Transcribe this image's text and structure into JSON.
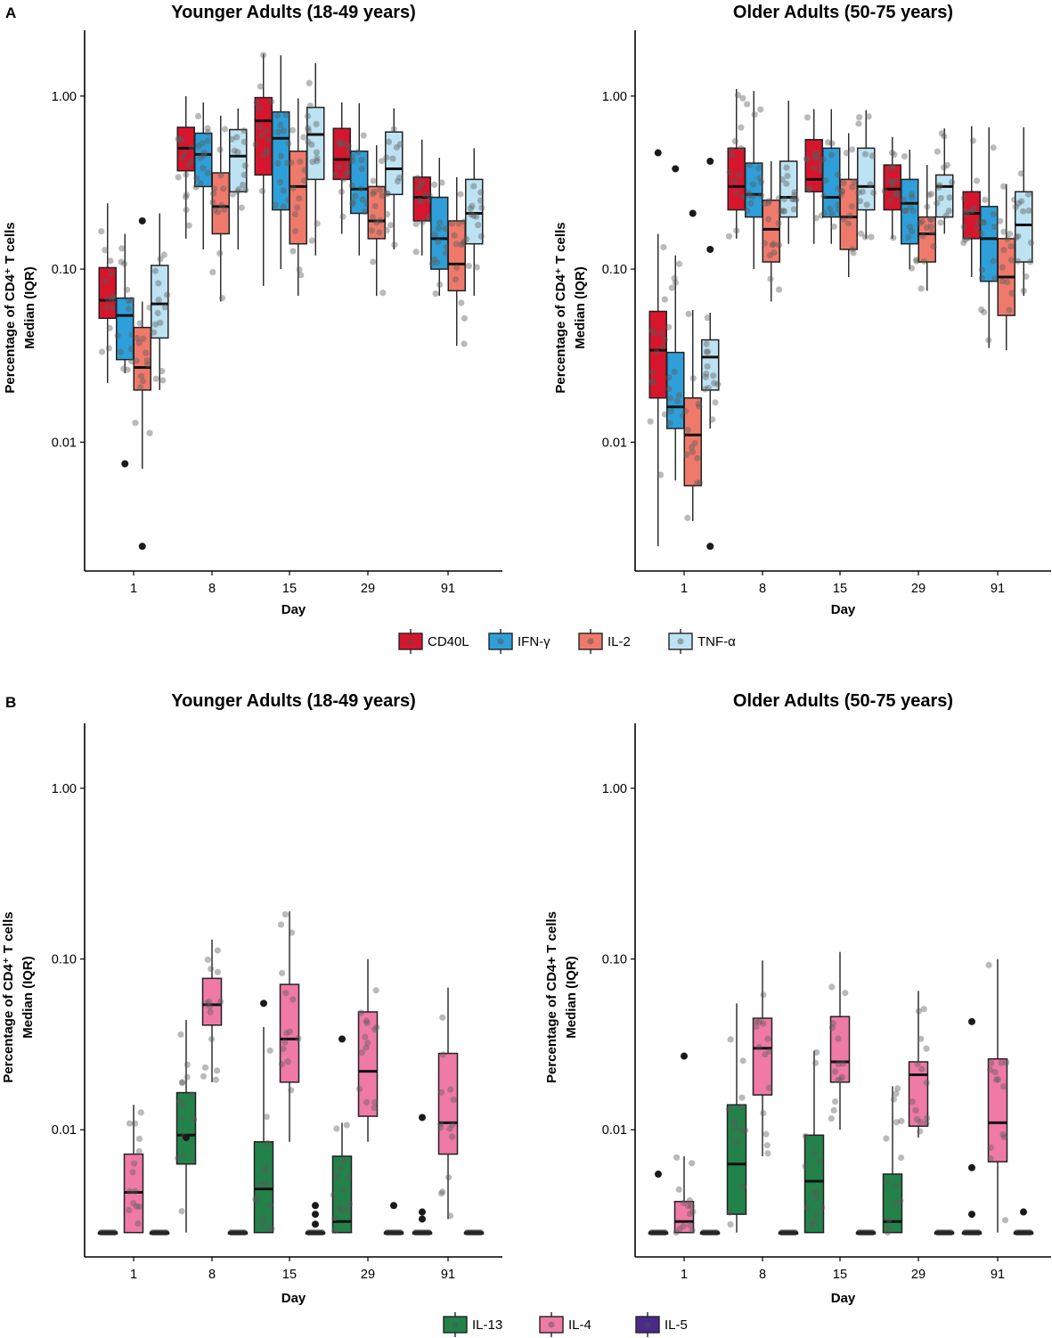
{
  "figure": {
    "panels": [
      {
        "letter": "A",
        "legend_key": "legend_A"
      },
      {
        "letter": "B",
        "legend_key": "legend_B"
      }
    ]
  },
  "legend_A": [
    {
      "label": "CD40L",
      "color": "#d7152d"
    },
    {
      "label": "IFN-γ",
      "color": "#2e9fd8"
    },
    {
      "label": "IL-2",
      "color": "#ef7a6b"
    },
    {
      "label": "TNF-α",
      "color": "#bde3f3"
    }
  ],
  "legend_B": [
    {
      "label": "IL-13",
      "color": "#23824a"
    },
    {
      "label": "IL-4",
      "color": "#ef7aa6"
    },
    {
      "label": "IL-5",
      "color": "#4a2b8c"
    }
  ],
  "chart_data": [
    {
      "type": "box",
      "panel": "A",
      "title": "Younger Adults (18-49 years)",
      "xlabel": "Day",
      "ylabel_line1": "Percentage of CD4⁺ T cells",
      "ylabel_line2": "Median (IQR)",
      "yscale": "log10",
      "ylim": [
        0.0018,
        2.4
      ],
      "yticks": [
        {
          "value": 1,
          "label": "1.00"
        },
        {
          "value": 0.1,
          "label": "0.10"
        },
        {
          "value": 0.01,
          "label": "0.01"
        }
      ],
      "categories": [
        "1",
        "8",
        "15",
        "29",
        "91"
      ],
      "series": [
        {
          "name": "CD40L",
          "color": "#d7152d",
          "boxes": [
            {
              "low": 0.022,
              "q1": 0.052,
              "median": 0.066,
              "q3": 0.102,
              "high": 0.24
            },
            {
              "low": 0.15,
              "q1": 0.37,
              "median": 0.5,
              "q3": 0.66,
              "high": 1.0
            },
            {
              "low": 0.08,
              "q1": 0.35,
              "median": 0.72,
              "q3": 0.98,
              "high": 1.75
            },
            {
              "low": 0.16,
              "q1": 0.33,
              "median": 0.43,
              "q3": 0.65,
              "high": 0.92
            },
            {
              "low": 0.12,
              "q1": 0.19,
              "median": 0.26,
              "q3": 0.34,
              "high": 0.56
            }
          ]
        },
        {
          "name": "IFN-γ",
          "color": "#2e9fd8",
          "boxes": [
            {
              "low": 0.025,
              "q1": 0.03,
              "median": 0.054,
              "q3": 0.068,
              "high": 0.16,
              "outliers": [
                0.0075
              ]
            },
            {
              "low": 0.13,
              "q1": 0.3,
              "median": 0.46,
              "q3": 0.61,
              "high": 0.92
            },
            {
              "low": 0.1,
              "q1": 0.22,
              "median": 0.57,
              "q3": 0.81,
              "high": 1.72
            },
            {
              "low": 0.12,
              "q1": 0.21,
              "median": 0.29,
              "q3": 0.48,
              "high": 0.91
            },
            {
              "low": 0.07,
              "q1": 0.1,
              "median": 0.15,
              "q3": 0.26,
              "high": 0.44
            }
          ]
        },
        {
          "name": "IL-2",
          "color": "#ef7a6b",
          "boxes": [
            {
              "low": 0.007,
              "q1": 0.02,
              "median": 0.027,
              "q3": 0.046,
              "high": 0.065,
              "outliers": [
                0.19,
                0.0025
              ]
            },
            {
              "low": 0.065,
              "q1": 0.16,
              "median": 0.23,
              "q3": 0.36,
              "high": 0.77
            },
            {
              "low": 0.07,
              "q1": 0.14,
              "median": 0.3,
              "q3": 0.48,
              "high": 0.97
            },
            {
              "low": 0.07,
              "q1": 0.15,
              "median": 0.19,
              "q3": 0.3,
              "high": 0.52
            },
            {
              "low": 0.036,
              "q1": 0.075,
              "median": 0.107,
              "q3": 0.19,
              "high": 0.34
            }
          ]
        },
        {
          "name": "TNF-α",
          "color": "#bde3f3",
          "boxes": [
            {
              "low": 0.02,
              "q1": 0.04,
              "median": 0.063,
              "q3": 0.105,
              "high": 0.21
            },
            {
              "low": 0.13,
              "q1": 0.28,
              "median": 0.45,
              "q3": 0.64,
              "high": 0.85
            },
            {
              "low": 0.12,
              "q1": 0.33,
              "median": 0.6,
              "q3": 0.86,
              "high": 1.55
            },
            {
              "low": 0.13,
              "q1": 0.27,
              "median": 0.38,
              "q3": 0.62,
              "high": 0.85
            },
            {
              "low": 0.07,
              "q1": 0.14,
              "median": 0.21,
              "q3": 0.33,
              "high": 0.5
            }
          ]
        }
      ]
    },
    {
      "type": "box",
      "panel": "A",
      "title": "Older Adults (50-75 years)",
      "xlabel": "Day",
      "ylabel_line1": "Percentage of CD4⁺ T cells",
      "ylabel_line2": "Median (IQR)",
      "yscale": "log10",
      "ylim": [
        0.0018,
        2.4
      ],
      "yticks": [
        {
          "value": 1,
          "label": "1.00"
        },
        {
          "value": 0.1,
          "label": "0.10"
        },
        {
          "value": 0.01,
          "label": "0.01"
        }
      ],
      "categories": [
        "1",
        "8",
        "15",
        "29",
        "91"
      ],
      "series": [
        {
          "name": "CD40L",
          "color": "#d7152d",
          "boxes": [
            {
              "low": 0.0025,
              "q1": 0.018,
              "median": 0.034,
              "q3": 0.057,
              "high": 0.16,
              "outliers": [
                0.47
              ]
            },
            {
              "low": 0.15,
              "q1": 0.22,
              "median": 0.3,
              "q3": 0.5,
              "high": 1.1
            },
            {
              "low": 0.14,
              "q1": 0.28,
              "median": 0.33,
              "q3": 0.56,
              "high": 0.84
            },
            {
              "low": 0.15,
              "q1": 0.22,
              "median": 0.29,
              "q3": 0.4,
              "high": 0.58
            },
            {
              "low": 0.09,
              "q1": 0.15,
              "median": 0.21,
              "q3": 0.28,
              "high": 0.67
            }
          ]
        },
        {
          "name": "IFN-γ",
          "color": "#2e9fd8",
          "boxes": [
            {
              "low": 0.006,
              "q1": 0.012,
              "median": 0.016,
              "q3": 0.033,
              "high": 0.12,
              "outliers": [
                0.38
              ]
            },
            {
              "low": 0.1,
              "q1": 0.2,
              "median": 0.27,
              "q3": 0.41,
              "high": 1.07
            },
            {
              "low": 0.14,
              "q1": 0.2,
              "median": 0.26,
              "q3": 0.5,
              "high": 0.84
            },
            {
              "low": 0.1,
              "q1": 0.14,
              "median": 0.24,
              "q3": 0.33,
              "high": 0.49
            },
            {
              "low": 0.035,
              "q1": 0.085,
              "median": 0.15,
              "q3": 0.23,
              "high": 0.66
            }
          ]
        },
        {
          "name": "IL-2",
          "color": "#ef7a6b",
          "boxes": [
            {
              "low": 0.0035,
              "q1": 0.0056,
              "median": 0.011,
              "q3": 0.018,
              "high": 0.058,
              "outliers": [
                0.21
              ]
            },
            {
              "low": 0.065,
              "q1": 0.11,
              "median": 0.17,
              "q3": 0.25,
              "high": 0.42
            },
            {
              "low": 0.09,
              "q1": 0.13,
              "median": 0.2,
              "q3": 0.33,
              "high": 0.61
            },
            {
              "low": 0.075,
              "q1": 0.11,
              "median": 0.16,
              "q3": 0.2,
              "high": 0.4
            },
            {
              "low": 0.034,
              "q1": 0.054,
              "median": 0.09,
              "q3": 0.15,
              "high": 0.31
            }
          ]
        },
        {
          "name": "TNF-α",
          "color": "#bde3f3",
          "boxes": [
            {
              "low": 0.012,
              "q1": 0.02,
              "median": 0.031,
              "q3": 0.039,
              "high": 0.056,
              "outliers": [
                0.42,
                0.13,
                0.0025
              ]
            },
            {
              "low": 0.14,
              "q1": 0.2,
              "median": 0.26,
              "q3": 0.42,
              "high": 0.94
            },
            {
              "low": 0.15,
              "q1": 0.22,
              "median": 0.3,
              "q3": 0.5,
              "high": 0.83
            },
            {
              "low": 0.16,
              "q1": 0.2,
              "median": 0.3,
              "q3": 0.35,
              "high": 0.65
            },
            {
              "low": 0.07,
              "q1": 0.11,
              "median": 0.18,
              "q3": 0.28,
              "high": 0.66
            }
          ]
        }
      ]
    },
    {
      "type": "box",
      "panel": "B",
      "title": "Younger Adults (18-49 years)",
      "xlabel": "Day",
      "ylabel_line1": "Percentage of CD4⁺ T cells",
      "ylabel_line2": "Median (IQR)",
      "yscale": "log10",
      "ylim": [
        0.0018,
        2.4
      ],
      "yticks": [
        {
          "value": 1,
          "label": "1.00"
        },
        {
          "value": 0.1,
          "label": "0.10"
        },
        {
          "value": 0.01,
          "label": "0.01"
        }
      ],
      "categories": [
        "1",
        "8",
        "15",
        "29",
        "91"
      ],
      "series": [
        {
          "name": "IL-13",
          "color": "#23824a",
          "boxes": [
            {
              "low": 0.0025,
              "q1": 0.0025,
              "median": 0.0025,
              "q3": 0.0025,
              "high": 0.0025
            },
            {
              "low": 0.0025,
              "q1": 0.0063,
              "median": 0.0093,
              "q3": 0.0165,
              "high": 0.044,
              "outliers": [
                0.009
              ]
            },
            {
              "low": 0.0025,
              "q1": 0.0025,
              "median": 0.0045,
              "q3": 0.0085,
              "high": 0.04,
              "outliers": [
                0.055
              ]
            },
            {
              "low": 0.0025,
              "q1": 0.0025,
              "median": 0.0029,
              "q3": 0.007,
              "high": 0.011,
              "outliers": [
                0.034
              ]
            },
            {
              "low": 0.0025,
              "q1": 0.0025,
              "median": 0.0025,
              "q3": 0.0025,
              "high": 0.0025,
              "outliers": [
                0.0118,
                0.0033,
                0.003
              ]
            }
          ]
        },
        {
          "name": "IL-4",
          "color": "#ef7aa6",
          "boxes": [
            {
              "low": 0.0025,
              "q1": 0.0025,
              "median": 0.0043,
              "q3": 0.0072,
              "high": 0.014
            },
            {
              "low": 0.019,
              "q1": 0.041,
              "median": 0.054,
              "q3": 0.077,
              "high": 0.13
            },
            {
              "low": 0.0085,
              "q1": 0.019,
              "median": 0.034,
              "q3": 0.071,
              "high": 0.19
            },
            {
              "low": 0.0085,
              "q1": 0.012,
              "median": 0.022,
              "q3": 0.049,
              "high": 0.1
            },
            {
              "low": 0.003,
              "q1": 0.0072,
              "median": 0.011,
              "q3": 0.028,
              "high": 0.068
            }
          ]
        },
        {
          "name": "IL-5",
          "color": "#4a2b8c",
          "boxes": [
            {
              "low": 0.0025,
              "q1": 0.0025,
              "median": 0.0025,
              "q3": 0.0025,
              "high": 0.0025
            },
            {
              "low": 0.0025,
              "q1": 0.0025,
              "median": 0.0025,
              "q3": 0.0025,
              "high": 0.0025
            },
            {
              "low": 0.0025,
              "q1": 0.0025,
              "median": 0.0025,
              "q3": 0.0025,
              "high": 0.0025,
              "outliers": [
                0.0036,
                0.0032,
                0.0028
              ]
            },
            {
              "low": 0.0025,
              "q1": 0.0025,
              "median": 0.0025,
              "q3": 0.0025,
              "high": 0.0025,
              "outliers": [
                0.0036
              ]
            },
            {
              "low": 0.0025,
              "q1": 0.0025,
              "median": 0.0025,
              "q3": 0.0025,
              "high": 0.0025
            }
          ]
        }
      ]
    },
    {
      "type": "box",
      "panel": "B",
      "title": "Older Adults (50-75 years)",
      "xlabel": "Day",
      "ylabel_line1": "Percentage of CD4+ T cells",
      "ylabel_line2": "Median (IQR)",
      "yscale": "log10",
      "ylim": [
        0.0018,
        2.4
      ],
      "yticks": [
        {
          "value": 1,
          "label": "1.00"
        },
        {
          "value": 0.1,
          "label": "0.10"
        },
        {
          "value": 0.01,
          "label": "0.01"
        }
      ],
      "categories": [
        "1",
        "8",
        "15",
        "29",
        "91"
      ],
      "series": [
        {
          "name": "IL-13",
          "color": "#23824a",
          "boxes": [
            {
              "low": 0.0025,
              "q1": 0.0025,
              "median": 0.0025,
              "q3": 0.0025,
              "high": 0.0025,
              "outliers": [
                0.0055
              ]
            },
            {
              "low": 0.0025,
              "q1": 0.0032,
              "median": 0.0063,
              "q3": 0.014,
              "high": 0.055
            },
            {
              "low": 0.0025,
              "q1": 0.0025,
              "median": 0.005,
              "q3": 0.0093,
              "high": 0.029
            },
            {
              "low": 0.0025,
              "q1": 0.0025,
              "median": 0.0029,
              "q3": 0.0055,
              "high": 0.018
            },
            {
              "low": 0.0025,
              "q1": 0.0025,
              "median": 0.0025,
              "q3": 0.0025,
              "high": 0.0025,
              "outliers": [
                0.043,
                0.006,
                0.0032
              ]
            }
          ]
        },
        {
          "name": "IL-4",
          "color": "#ef7aa6",
          "boxes": [
            {
              "low": 0.0025,
              "q1": 0.0025,
              "median": 0.0029,
              "q3": 0.0038,
              "high": 0.007,
              "outliers": [
                0.027
              ]
            },
            {
              "low": 0.007,
              "q1": 0.016,
              "median": 0.03,
              "q3": 0.045,
              "high": 0.098
            },
            {
              "low": 0.01,
              "q1": 0.019,
              "median": 0.025,
              "q3": 0.046,
              "high": 0.11
            },
            {
              "low": 0.009,
              "q1": 0.0105,
              "median": 0.021,
              "q3": 0.025,
              "high": 0.065
            },
            {
              "low": 0.0025,
              "q1": 0.0065,
              "median": 0.011,
              "q3": 0.026,
              "high": 0.1
            }
          ]
        },
        {
          "name": "IL-5",
          "color": "#4a2b8c",
          "boxes": [
            {
              "low": 0.0025,
              "q1": 0.0025,
              "median": 0.0025,
              "q3": 0.0025,
              "high": 0.0025
            },
            {
              "low": 0.0025,
              "q1": 0.0025,
              "median": 0.0025,
              "q3": 0.0025,
              "high": 0.0025
            },
            {
              "low": 0.0025,
              "q1": 0.0025,
              "median": 0.0025,
              "q3": 0.0025,
              "high": 0.0025
            },
            {
              "low": 0.0025,
              "q1": 0.0025,
              "median": 0.0025,
              "q3": 0.0025,
              "high": 0.0025
            },
            {
              "low": 0.0025,
              "q1": 0.0025,
              "median": 0.0025,
              "q3": 0.0025,
              "high": 0.0025,
              "outliers": [
                0.0033
              ]
            }
          ]
        }
      ]
    }
  ]
}
